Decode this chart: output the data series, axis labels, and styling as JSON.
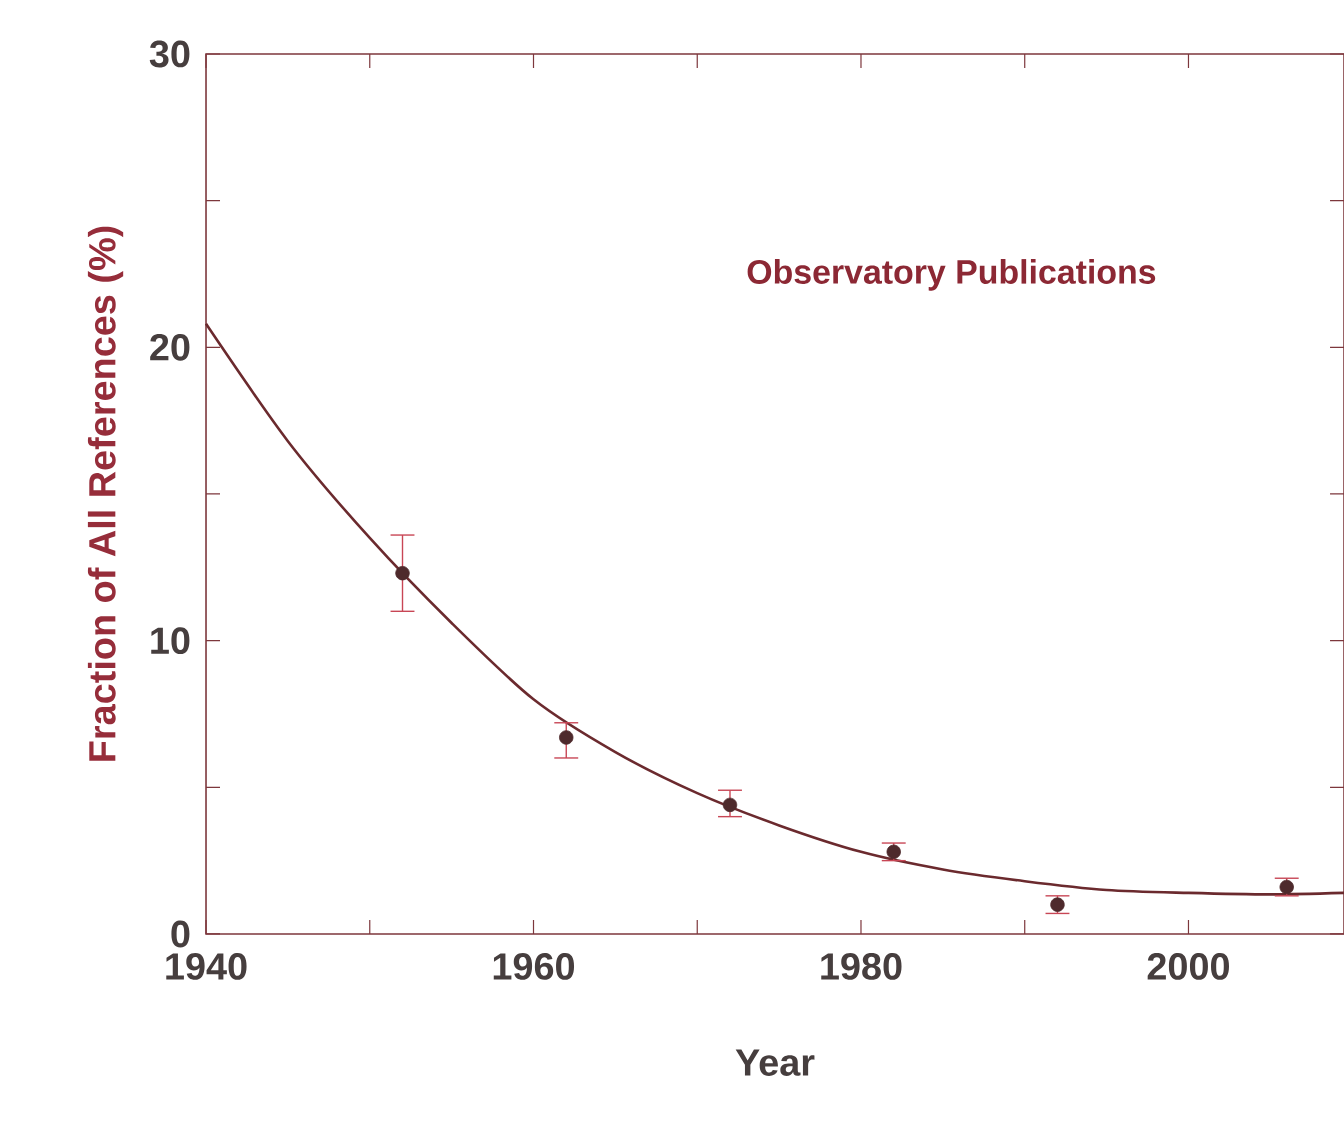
{
  "chart_data": {
    "type": "scatter",
    "xlabel": "Year",
    "ylabel": "Fraction of All References (%)",
    "annotations": [
      "Observatory Publications"
    ],
    "xlim": [
      1940,
      2009.5
    ],
    "ylim": [
      0,
      30
    ],
    "xticks": [
      1940,
      {
        "value": 1950,
        "label": null
      },
      1960,
      {
        "value": 1970,
        "label": null
      },
      1980,
      {
        "value": 1990,
        "label": null
      },
      2000
    ],
    "yticks": [
      0,
      {
        "value": 5,
        "label": null
      },
      10,
      {
        "value": 15,
        "label": null
      },
      20,
      {
        "value": 25,
        "label": null
      },
      30
    ],
    "series": [
      {
        "type": "line",
        "color": "#6b2a2e",
        "marker": "none",
        "x": [
          1940,
          1945,
          1950,
          1955,
          1960,
          1965,
          1970,
          1975,
          1980,
          1985,
          1990,
          1995,
          2000,
          2005,
          2009.5
        ],
        "values": [
          20.8,
          16.8,
          13.5,
          10.6,
          8.0,
          6.2,
          4.8,
          3.7,
          2.8,
          2.2,
          1.8,
          1.5,
          1.4,
          1.35,
          1.4
        ]
      },
      {
        "color": "#4e2a2c",
        "marker": "circle",
        "x": [
          1952,
          1962,
          1972,
          1982,
          1992,
          2006
        ],
        "values": [
          12.3,
          6.7,
          4.4,
          2.8,
          1.0,
          1.6
        ],
        "errors": [
          [
            11.0,
            13.6
          ],
          [
            6.0,
            7.2
          ],
          [
            4.0,
            4.9
          ],
          0.3,
          0.3,
          0.3
        ]
      }
    ]
  }
}
